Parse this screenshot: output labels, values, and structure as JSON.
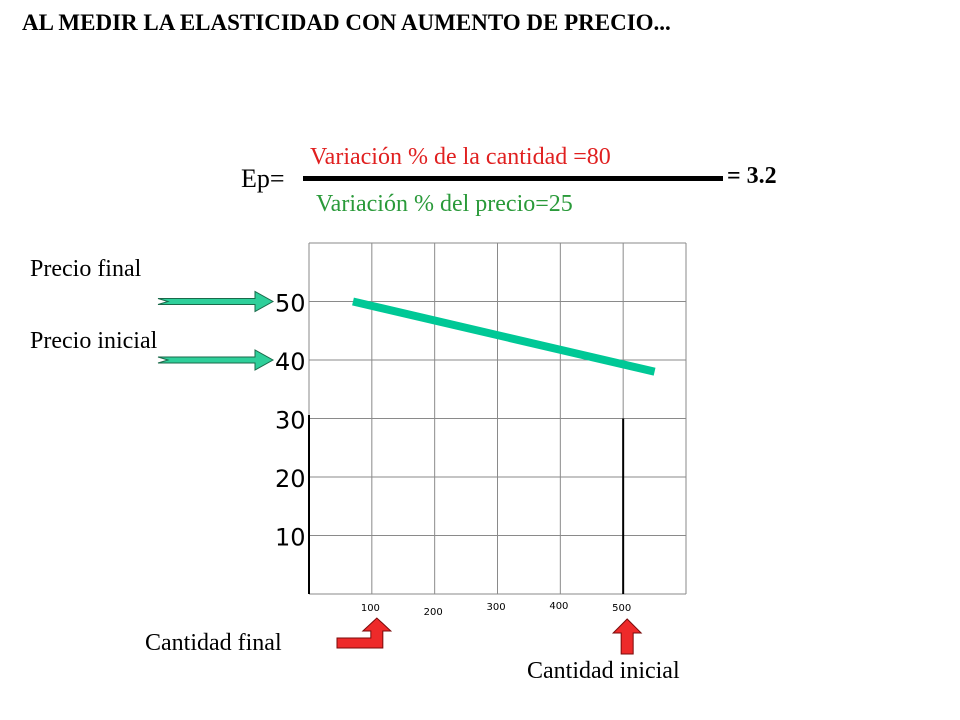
{
  "title": "AL MEDIR LA ELASTICIDAD CON AUMENTO DE PRECIO...",
  "equation": {
    "lhs": "Ep=",
    "numerator": "Variación % de la cantidad =80",
    "denominator": "Variación % del precio=25",
    "result": "= 3.2"
  },
  "labels": {
    "precio_final": "Precio final",
    "precio_inicial": "Precio inicial",
    "cantidad_final": "Cantidad final",
    "cantidad_inicial": "Cantidad inicial"
  },
  "colors": {
    "numerator": "#e02020",
    "denominator": "#2a9a3a",
    "demand_line": "#00c896",
    "price_arrow": "#2ecf9a",
    "quantity_arrow": "#ee2a2a"
  },
  "chart_data": {
    "type": "line",
    "x_ticks": [
      100,
      200,
      300,
      400,
      500
    ],
    "y_ticks": [
      10,
      20,
      30,
      40,
      50
    ],
    "xlim": [
      0,
      600
    ],
    "ylim": [
      0,
      60
    ],
    "grid": true,
    "series": [
      {
        "x": [
          70,
          550
        ],
        "y": [
          50,
          38
        ]
      }
    ],
    "guide_line": {
      "x": 500,
      "y_top": 30
    },
    "price_arrows": [
      {
        "target_y": 50,
        "label_key": "precio_final"
      },
      {
        "target_y": 40,
        "label_key": "precio_inicial"
      }
    ],
    "quantity_arrows": [
      {
        "target_x": 100,
        "label_key": "cantidad_final"
      },
      {
        "target_x": 500,
        "label_key": "cantidad_inicial"
      }
    ]
  }
}
